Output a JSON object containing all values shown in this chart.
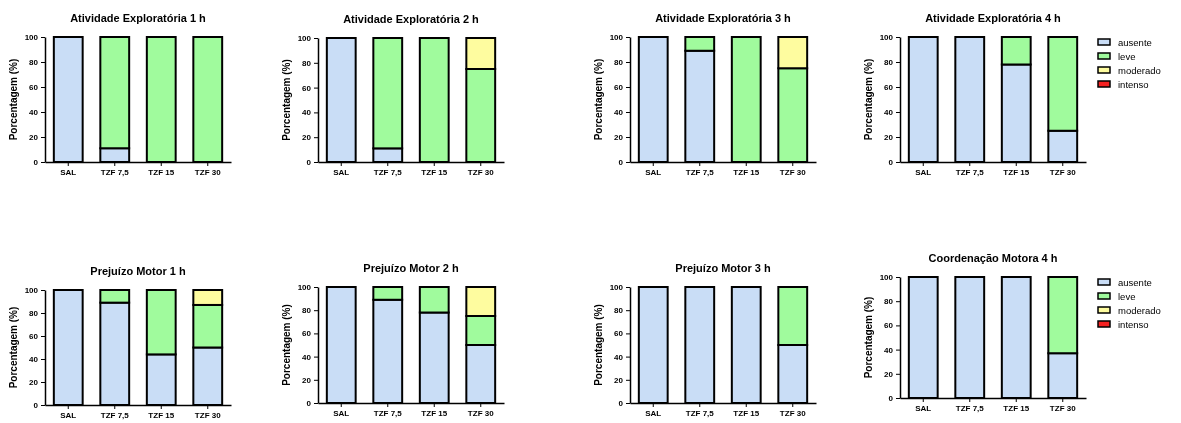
{
  "chart_data": [
    {
      "type": "bar",
      "stacked": true,
      "title": "Atividade Exploratória 1 h",
      "ylabel": "Porcentagem (%)",
      "categories": [
        "SAL",
        "TZF 7,5",
        "TZF 15",
        "TZF 30"
      ],
      "ylim": [
        0,
        100
      ],
      "yticks": [
        0,
        20,
        40,
        60,
        80,
        100
      ],
      "series": [
        {
          "color": "#c9ddf6",
          "values": [
            100,
            11,
            0,
            0
          ]
        },
        {
          "color": "#a0fb9d",
          "values": [
            0,
            89,
            100,
            100
          ]
        },
        {
          "color": "#fefc9f",
          "values": [
            0,
            0,
            0,
            0
          ]
        },
        {
          "color": "#f52222",
          "values": [
            0,
            0,
            0,
            0
          ]
        }
      ]
    },
    {
      "type": "bar",
      "stacked": true,
      "title": "Atividade Exploratória 2 h",
      "ylabel": "Porcentagem (%)",
      "categories": [
        "SAL",
        "TZF 7,5",
        "TZF 15",
        "TZF 30"
      ],
      "ylim": [
        0,
        100
      ],
      "yticks": [
        0,
        20,
        40,
        60,
        80,
        100
      ],
      "series": [
        {
          "color": "#c9ddf6",
          "values": [
            100,
            11,
            0,
            0
          ]
        },
        {
          "color": "#a0fb9d",
          "values": [
            0,
            89,
            100,
            75
          ]
        },
        {
          "color": "#fefc9f",
          "values": [
            0,
            0,
            0,
            25
          ]
        },
        {
          "color": "#f52222",
          "values": [
            0,
            0,
            0,
            0
          ]
        }
      ]
    },
    {
      "type": "bar",
      "stacked": true,
      "title": "Atividade Exploratória 3 h",
      "ylabel": "Porcentagem (%)",
      "categories": [
        "SAL",
        "TZF 7,5",
        "TZF 15",
        "TZF 30"
      ],
      "ylim": [
        0,
        100
      ],
      "yticks": [
        0,
        20,
        40,
        60,
        80,
        100
      ],
      "series": [
        {
          "color": "#c9ddf6",
          "values": [
            100,
            89,
            0,
            0
          ]
        },
        {
          "color": "#a0fb9d",
          "values": [
            0,
            11,
            100,
            75
          ]
        },
        {
          "color": "#fefc9f",
          "values": [
            0,
            0,
            0,
            25
          ]
        },
        {
          "color": "#f52222",
          "values": [
            0,
            0,
            0,
            0
          ]
        }
      ]
    },
    {
      "type": "bar",
      "stacked": true,
      "title": "Atividade Exploratória 4 h",
      "ylabel": "Porcentagem (%)",
      "categories": [
        "SAL",
        "TZF 7,5",
        "TZF 15",
        "TZF 30"
      ],
      "ylim": [
        0,
        100
      ],
      "yticks": [
        0,
        20,
        40,
        60,
        80,
        100
      ],
      "legend": "right",
      "series": [
        {
          "name": "ausente",
          "color": "#c9ddf6",
          "values": [
            100,
            100,
            78,
            25
          ]
        },
        {
          "name": "leve",
          "color": "#a0fb9d",
          "values": [
            0,
            0,
            22,
            75
          ]
        },
        {
          "name": "moderado",
          "color": "#fefc9f",
          "values": [
            0,
            0,
            0,
            0
          ]
        },
        {
          "name": "intenso",
          "color": "#f52222",
          "values": [
            0,
            0,
            0,
            0
          ]
        }
      ]
    },
    {
      "type": "bar",
      "stacked": true,
      "title": "Prejuízo Motor 1 h",
      "ylabel": "Porcentagem (%)",
      "categories": [
        "SAL",
        "TZF 7,5",
        "TZF 15",
        "TZF 30"
      ],
      "ylim": [
        0,
        100
      ],
      "yticks": [
        0,
        20,
        40,
        60,
        80,
        100
      ],
      "series": [
        {
          "color": "#c9ddf6",
          "values": [
            100,
            89,
            44,
            50
          ]
        },
        {
          "color": "#a0fb9d",
          "values": [
            0,
            11,
            56,
            37
          ]
        },
        {
          "color": "#fefc9f",
          "values": [
            0,
            0,
            0,
            13
          ]
        },
        {
          "color": "#f52222",
          "values": [
            0,
            0,
            0,
            0
          ]
        }
      ]
    },
    {
      "type": "bar",
      "stacked": true,
      "title": "Prejuízo Motor 2 h",
      "ylabel": "Porcentagem (%)",
      "categories": [
        "SAL",
        "TZF 7,5",
        "TZF 15",
        "TZF 30"
      ],
      "ylim": [
        0,
        100
      ],
      "yticks": [
        0,
        20,
        40,
        60,
        80,
        100
      ],
      "series": [
        {
          "color": "#c9ddf6",
          "values": [
            100,
            89,
            78,
            50
          ]
        },
        {
          "color": "#a0fb9d",
          "values": [
            0,
            11,
            22,
            25
          ]
        },
        {
          "color": "#fefc9f",
          "values": [
            0,
            0,
            0,
            25
          ]
        },
        {
          "color": "#f52222",
          "values": [
            0,
            0,
            0,
            0
          ]
        }
      ]
    },
    {
      "type": "bar",
      "stacked": true,
      "title": "Prejuízo Motor 3 h",
      "ylabel": "Porcentagem (%)",
      "categories": [
        "SAL",
        "TZF 7,5",
        "TZF 15",
        "TZF 30"
      ],
      "ylim": [
        0,
        100
      ],
      "yticks": [
        0,
        20,
        40,
        60,
        80,
        100
      ],
      "series": [
        {
          "color": "#c9ddf6",
          "values": [
            100,
            100,
            100,
            50
          ]
        },
        {
          "color": "#a0fb9d",
          "values": [
            0,
            0,
            0,
            50
          ]
        },
        {
          "color": "#fefc9f",
          "values": [
            0,
            0,
            0,
            0
          ]
        },
        {
          "color": "#f52222",
          "values": [
            0,
            0,
            0,
            0
          ]
        }
      ]
    },
    {
      "type": "bar",
      "stacked": true,
      "title": "Coordenação Motora 4 h",
      "ylabel": "Porcentagem (%)",
      "categories": [
        "SAL",
        "TZF 7,5",
        "TZF 15",
        "TZF 30"
      ],
      "ylim": [
        0,
        100
      ],
      "yticks": [
        0,
        20,
        40,
        60,
        80,
        100
      ],
      "legend": "right",
      "series": [
        {
          "name": "ausente",
          "color": "#c9ddf6",
          "values": [
            100,
            100,
            100,
            37
          ]
        },
        {
          "name": "leve",
          "color": "#a0fb9d",
          "values": [
            0,
            0,
            0,
            63
          ]
        },
        {
          "name": "moderado",
          "color": "#fefc9f",
          "values": [
            0,
            0,
            0,
            0
          ]
        },
        {
          "name": "intenso",
          "color": "#f52222",
          "values": [
            0,
            0,
            0,
            0
          ]
        }
      ]
    }
  ]
}
